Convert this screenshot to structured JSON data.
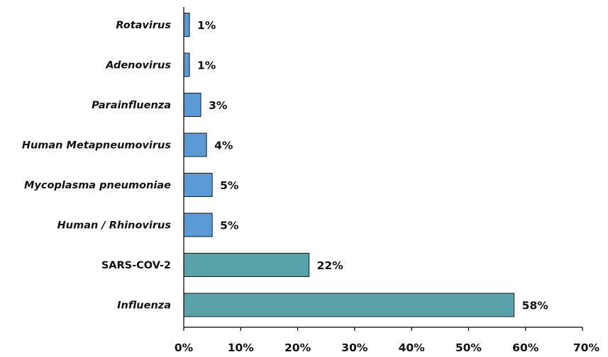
{
  "chart_data": {
    "type": "bar",
    "orientation": "horizontal",
    "title": "",
    "xlabel": "",
    "ylabel": "",
    "xlim": [
      0,
      70
    ],
    "grid": false,
    "x_ticks": [
      "0%",
      "10%",
      "20%",
      "30%",
      "40%",
      "50%",
      "60%",
      "70%"
    ],
    "colors": {
      "default": "#5b9bd5",
      "highlight": "#5aa2aa"
    },
    "categories": [
      {
        "label": "Rotavirus",
        "value": 1,
        "value_label": "1%",
        "italic": true,
        "highlight": false
      },
      {
        "label": "Adenovirus",
        "value": 1,
        "value_label": "1%",
        "italic": true,
        "highlight": false
      },
      {
        "label": "Parainfluenza",
        "value": 3,
        "value_label": "3%",
        "italic": true,
        "highlight": false
      },
      {
        "label": "Human Metapneumovirus",
        "value": 4,
        "value_label": "4%",
        "italic": true,
        "highlight": false
      },
      {
        "label": "Mycoplasma pneumoniae",
        "value": 5,
        "value_label": "5%",
        "italic": true,
        "highlight": false
      },
      {
        "label": "Human / Rhinovirus",
        "value": 5,
        "value_label": "5%",
        "italic": true,
        "highlight": false
      },
      {
        "label": "SARS-COV-2",
        "value": 22,
        "value_label": "22%",
        "italic": false,
        "highlight": true
      },
      {
        "label": "Influenza",
        "value": 58,
        "value_label": "58%",
        "italic": true,
        "highlight": true
      }
    ]
  }
}
